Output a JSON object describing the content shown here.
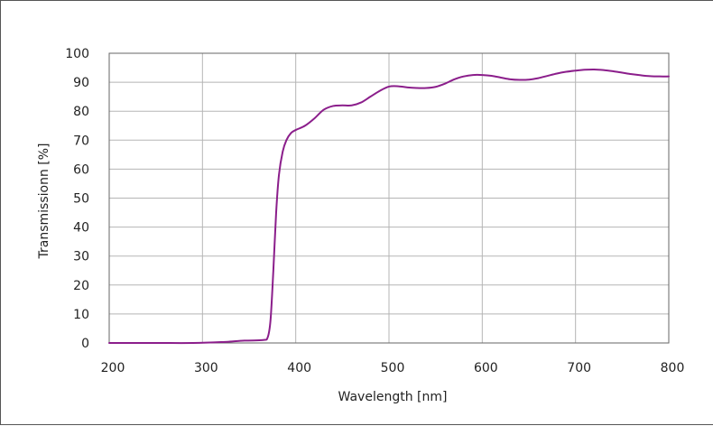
{
  "chart_data": {
    "type": "line",
    "xlabel": "Wavelength [nm]",
    "ylabel": "Transmissionn [%]",
    "xlim": [
      200,
      800
    ],
    "ylim": [
      0,
      100
    ],
    "x_ticks": [
      200,
      300,
      400,
      500,
      600,
      700,
      800
    ],
    "y_ticks": [
      0,
      10,
      20,
      30,
      40,
      50,
      60,
      70,
      80,
      90,
      100
    ],
    "grid": true,
    "legend": "none",
    "series": [
      {
        "color": "#8B1E8B",
        "points": [
          [
            200,
            0
          ],
          [
            250,
            0
          ],
          [
            290,
            0
          ],
          [
            320,
            0.3
          ],
          [
            345,
            0.8
          ],
          [
            365,
            1.0
          ],
          [
            370,
            2
          ],
          [
            373,
            8
          ],
          [
            376,
            25
          ],
          [
            379,
            45
          ],
          [
            382,
            58
          ],
          [
            386,
            66
          ],
          [
            390,
            70
          ],
          [
            395,
            72.5
          ],
          [
            400,
            73.5
          ],
          [
            410,
            75
          ],
          [
            420,
            77.5
          ],
          [
            430,
            80.5
          ],
          [
            440,
            81.8
          ],
          [
            450,
            82
          ],
          [
            460,
            82
          ],
          [
            470,
            83
          ],
          [
            480,
            85
          ],
          [
            490,
            87
          ],
          [
            500,
            88.5
          ],
          [
            510,
            88.6
          ],
          [
            520,
            88.2
          ],
          [
            530,
            88
          ],
          [
            540,
            88
          ],
          [
            550,
            88.4
          ],
          [
            560,
            89.5
          ],
          [
            570,
            91
          ],
          [
            580,
            92
          ],
          [
            590,
            92.5
          ],
          [
            600,
            92.5
          ],
          [
            610,
            92.2
          ],
          [
            620,
            91.6
          ],
          [
            630,
            91
          ],
          [
            640,
            90.8
          ],
          [
            650,
            90.9
          ],
          [
            660,
            91.4
          ],
          [
            670,
            92.2
          ],
          [
            680,
            93
          ],
          [
            690,
            93.6
          ],
          [
            700,
            94
          ],
          [
            710,
            94.3
          ],
          [
            720,
            94.4
          ],
          [
            730,
            94.2
          ],
          [
            740,
            93.8
          ],
          [
            750,
            93.3
          ],
          [
            760,
            92.8
          ],
          [
            770,
            92.4
          ],
          [
            780,
            92.1
          ],
          [
            790,
            92
          ],
          [
            800,
            92
          ]
        ]
      }
    ]
  }
}
